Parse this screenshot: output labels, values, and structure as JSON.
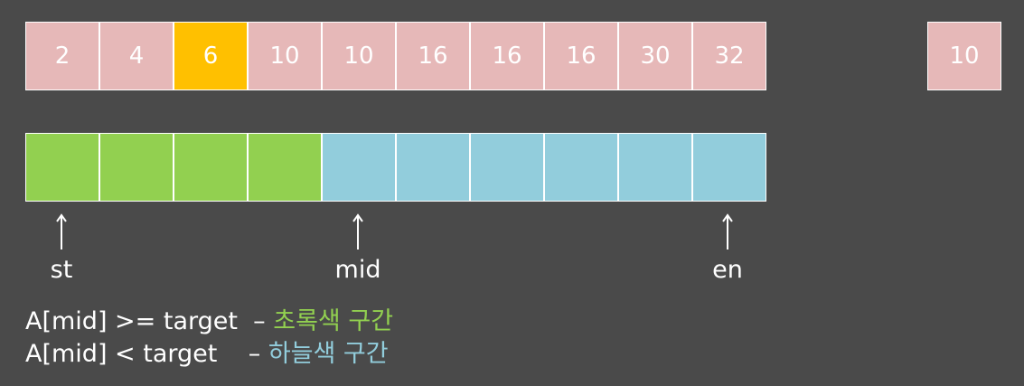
{
  "array_values": [
    "2",
    "4",
    "6",
    "10",
    "10",
    "16",
    "16",
    "16",
    "30",
    "32"
  ],
  "target_value": "10",
  "pointers": {
    "st": "st",
    "mid": "mid",
    "en": "en"
  },
  "legend": {
    "line1_condition": "A[mid] >= target",
    "line1_dash": "–",
    "line1_region": "초록색 구간",
    "line2_condition": "A[mid] < target",
    "line2_dash": "–",
    "line2_region": "하늘색 구간"
  },
  "colors": {
    "background": "#4a4a4a",
    "array_cell": "#e6b8b8",
    "highlight_cell": "#ffc000",
    "green_region": "#92d050",
    "blue_region": "#92cddc"
  }
}
